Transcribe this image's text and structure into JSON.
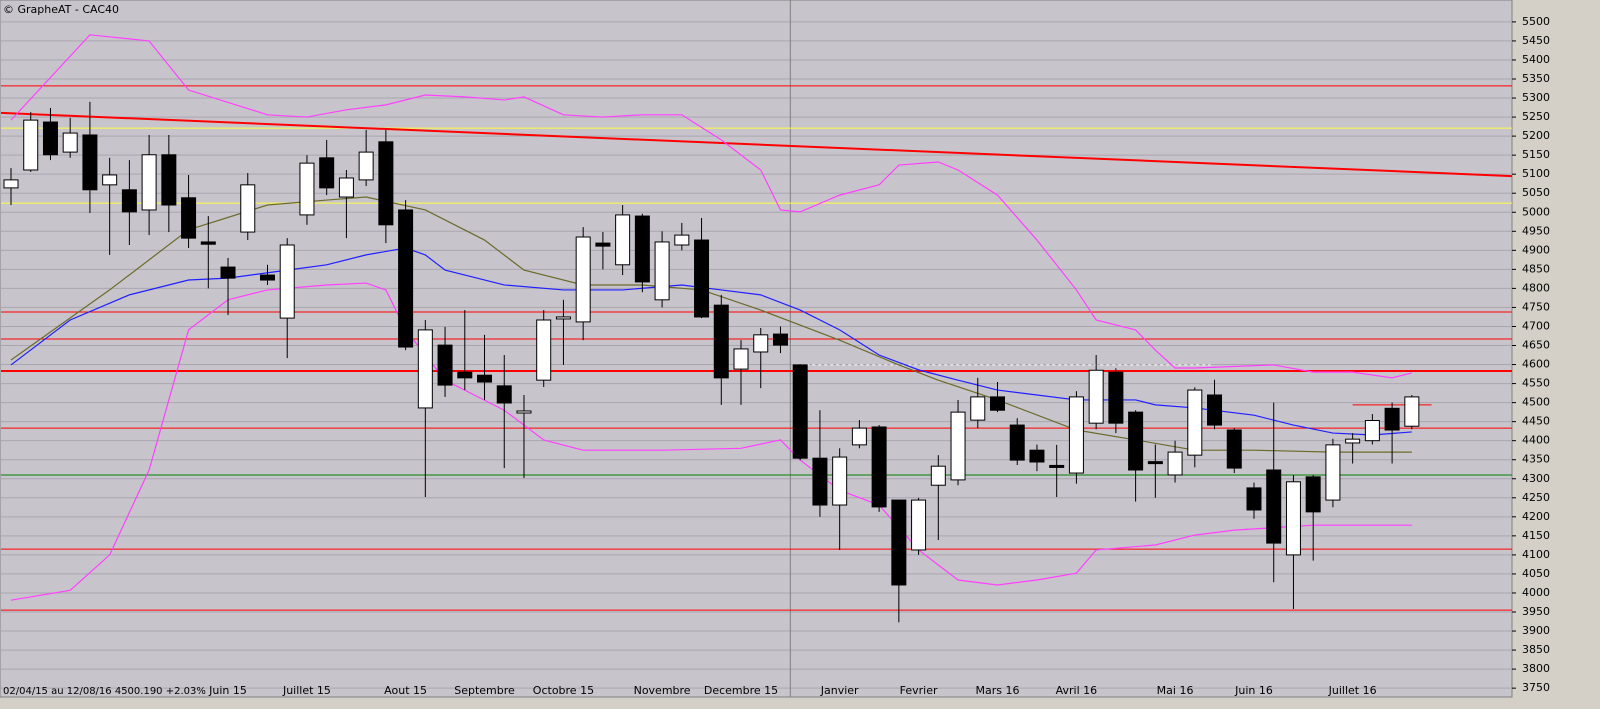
{
  "chart_data": {
    "type": "candlestick",
    "title": "© GrapheAT - CAC40",
    "footer": "02/04/15 au 12/08/16  4500.190  +2.03%",
    "categories": [
      null,
      null,
      null,
      null,
      null,
      null,
      null,
      null,
      null,
      null,
      null,
      "Juin 15",
      null,
      null,
      null,
      "Juillet 15",
      null,
      null,
      null,
      null,
      "Aout 15",
      null,
      null,
      null,
      "Septembre",
      null,
      null,
      null,
      "Octobre 15",
      null,
      null,
      null,
      null,
      "Novembre",
      null,
      null,
      null,
      "Decembre 15",
      null,
      null,
      null,
      null,
      "Janvier",
      null,
      null,
      null,
      "Fevrier",
      null,
      null,
      null,
      "Mars 16",
      null,
      null,
      null,
      "Avril 16",
      null,
      null,
      null,
      null,
      "Mai 16",
      null,
      null,
      null,
      "Juin 16",
      null,
      null,
      null,
      null,
      "Juillet 16",
      null,
      null,
      null
    ],
    "open": [
      5064,
      5111,
      5237,
      5158,
      5203,
      5072,
      5059,
      5006,
      5151,
      5038,
      4922,
      4856,
      4948,
      4835,
      4722,
      4993,
      5143,
      5040,
      5085,
      5185,
      5006,
      4486,
      4651,
      4580,
      4572,
      4544,
      4473,
      4559,
      4720,
      4712,
      4919,
      4862,
      4990,
      4770,
      4914,
      4927,
      4756,
      4588,
      4633,
      4680,
      4599,
      4354,
      4231,
      4389,
      4436,
      4244,
      4113,
      4283,
      4297,
      4454,
      4515,
      4441,
      4375,
      4335,
      4315,
      4446,
      4580,
      4475,
      4345,
      4310,
      4362,
      4520,
      4428,
      4276,
      4323,
      4100,
      4305,
      4244,
      4394,
      4400,
      4485,
      4438
    ],
    "high": [
      5116,
      5263,
      5274,
      5248,
      5290,
      5143,
      5137,
      5203,
      5203,
      5098,
      4990,
      4880,
      5103,
      4862,
      4932,
      5150,
      5190,
      5111,
      5216,
      5216,
      5032,
      4717,
      4699,
      4743,
      4678,
      4625,
      4520,
      4743,
      4770,
      4961,
      4948,
      5019,
      4996,
      4950,
      4972,
      4985,
      4783,
      4664,
      4696,
      4700,
      4601,
      4480,
      4380,
      4454,
      4441,
      4244,
      4250,
      4362,
      4507,
      4565,
      4554,
      4459,
      4390,
      4389,
      4530,
      4625,
      4590,
      4480,
      4390,
      4400,
      4540,
      4560,
      4433,
      4290,
      4500,
      4310,
      4310,
      4405,
      4420,
      4470,
      4500,
      4520
    ],
    "low": [
      5019,
      5106,
      5137,
      5143,
      4998,
      4888,
      4914,
      4940,
      4948,
      4906,
      4800,
      4730,
      4927,
      4809,
      4617,
      4967,
      5045,
      4932,
      5069,
      4919,
      4638,
      4252,
      4515,
      4533,
      4507,
      4328,
      4302,
      4541,
      4599,
      4664,
      4850,
      4835,
      4790,
      4750,
      4900,
      4722,
      4494,
      4494,
      4538,
      4630,
      4349,
      4200,
      4113,
      4380,
      4213,
      3923,
      4100,
      4139,
      4283,
      4433,
      4475,
      4336,
      4320,
      4252,
      4287,
      4430,
      4420,
      4240,
      4250,
      4290,
      4330,
      4430,
      4315,
      4195,
      4028,
      3958,
      4085,
      4225,
      4340,
      4390,
      4340,
      4430
    ],
    "close": [
      5085,
      5242,
      5151,
      5208,
      5059,
      5098,
      5001,
      5151,
      5019,
      4932,
      4916,
      4827,
      5072,
      4822,
      4914,
      5129,
      5064,
      5090,
      5158,
      4967,
      4646,
      4691,
      4546,
      4565,
      4554,
      4499,
      4478,
      4717,
      4725,
      4935,
      4911,
      4993,
      4817,
      4922,
      4940,
      4725,
      4565,
      4641,
      4678,
      4651,
      4354,
      4231,
      4357,
      4433,
      4226,
      4021,
      4244,
      4333,
      4475,
      4515,
      4480,
      4349,
      4344,
      4330,
      4515,
      4585,
      4446,
      4323,
      4340,
      4370,
      4533,
      4441,
      4328,
      4218,
      4131,
      4292,
      4213,
      4389,
      4404,
      4453,
      4428,
      4515
    ],
    "up_color": "#ffffff",
    "down_color": "#000000",
    "overlays": [
      {
        "color": "#ff40ff",
        "x": [
          0,
          4,
          7,
          9,
          13,
          15,
          17,
          19,
          21,
          23,
          25,
          26,
          28,
          30,
          32,
          34,
          36,
          38,
          39,
          40,
          42,
          44,
          45,
          47,
          48,
          50,
          52,
          54,
          55,
          57,
          58,
          59,
          60,
          64,
          66,
          68,
          70,
          71
        ],
        "values": [
          5242,
          5466,
          5450,
          5321,
          5256,
          5250,
          5269,
          5282,
          5308,
          5303,
          5295,
          5303,
          5256,
          5250,
          5256,
          5256,
          5190,
          5111,
          5006,
          5001,
          5045,
          5072,
          5124,
          5132,
          5111,
          5045,
          4927,
          4796,
          4717,
          4691,
          4638,
          4591,
          4591,
          4599,
          4580,
          4580,
          4565,
          4578
        ]
      },
      {
        "color": "#ff40ff",
        "x": [
          0,
          3,
          5,
          7,
          9,
          11,
          13,
          16,
          18,
          19,
          20,
          22,
          25,
          27,
          29,
          33,
          37,
          39,
          40,
          42,
          44,
          46,
          48,
          50,
          52,
          54,
          55,
          58,
          60,
          62,
          66,
          68,
          71
        ],
        "values": [
          3981,
          4007,
          4100,
          4323,
          4691,
          4770,
          4796,
          4809,
          4814,
          4796,
          4691,
          4559,
          4480,
          4402,
          4375,
          4375,
          4380,
          4402,
          4349,
          4270,
          4231,
          4113,
          4034,
          4021,
          4034,
          4052,
          4113,
          4126,
          4152,
          4165,
          4178,
          4178,
          4178
        ]
      },
      {
        "color": "#2020ff",
        "x": [
          0,
          3,
          6,
          9,
          11,
          14,
          16,
          18,
          20,
          21,
          22,
          25,
          28,
          31,
          34,
          36,
          38,
          40,
          42,
          44,
          46,
          48,
          50,
          52,
          54,
          57,
          58,
          60,
          63,
          65,
          67,
          69,
          71
        ],
        "values": [
          4599,
          4717,
          4783,
          4822,
          4827,
          4848,
          4862,
          4888,
          4906,
          4888,
          4848,
          4809,
          4796,
          4796,
          4809,
          4796,
          4783,
          4743,
          4691,
          4625,
          4586,
          4559,
          4533,
          4520,
          4507,
          4507,
          4494,
          4486,
          4467,
          4441,
          4420,
          4415,
          4423
        ]
      },
      {
        "color": "#6b6b2a",
        "x": [
          0,
          5,
          9,
          13,
          16,
          18,
          21,
          24,
          26,
          29,
          32,
          35,
          38,
          42,
          45,
          47,
          50,
          54,
          57,
          60,
          63,
          67,
          71
        ],
        "values": [
          4612,
          4796,
          4954,
          5019,
          5032,
          5040,
          5006,
          4927,
          4848,
          4809,
          4809,
          4796,
          4743,
          4664,
          4599,
          4559,
          4507,
          4428,
          4402,
          4375,
          4375,
          4370,
          4370
        ]
      }
    ],
    "levels": [
      {
        "value": 5332,
        "color": "#ff0000",
        "width": 1
      },
      {
        "value": 5221,
        "color": "#ffff40",
        "width": 1
      },
      {
        "value": 5024,
        "color": "#ffff40",
        "width": 1
      },
      {
        "value": 4738,
        "color": "#ff0000",
        "width": 1
      },
      {
        "value": 4667,
        "color": "#ff0000",
        "width": 1
      },
      {
        "value": 4583,
        "color": "#ff0000",
        "width": 2
      },
      {
        "value": 4433,
        "color": "#ff0000",
        "width": 1
      },
      {
        "value": 4310,
        "color": "#008000",
        "width": 1
      },
      {
        "value": 4115,
        "color": "#ff0000",
        "width": 1
      },
      {
        "value": 3955,
        "color": "#ff0000",
        "width": 1
      }
    ],
    "segments": [
      {
        "x": [
          -0.55,
          76.1
        ],
        "values": [
          5261,
          5095
        ],
        "color": "#ff0000",
        "width": 2,
        "dashed": false
      },
      {
        "x": [
          40,
          60.8
        ],
        "values": [
          4599,
          4599
        ],
        "color": "#ffffff",
        "width": 1,
        "dashed": true
      },
      {
        "x": [
          68,
          72
        ],
        "values": [
          4494,
          4494
        ],
        "color": "#ff0000",
        "width": 1,
        "dashed": false
      }
    ],
    "ylim": [
      3732,
      5547
    ],
    "yticks": [
      3750,
      3800,
      3850,
      3900,
      3950,
      4000,
      4050,
      4100,
      4150,
      4200,
      4250,
      4300,
      4350,
      4400,
      4450,
      4500,
      4550,
      4600,
      4650,
      4700,
      4750,
      4800,
      4850,
      4900,
      4950,
      5000,
      5050,
      5100,
      5150,
      5200,
      5250,
      5300,
      5350,
      5400,
      5450,
      5500
    ],
    "grid": true
  }
}
